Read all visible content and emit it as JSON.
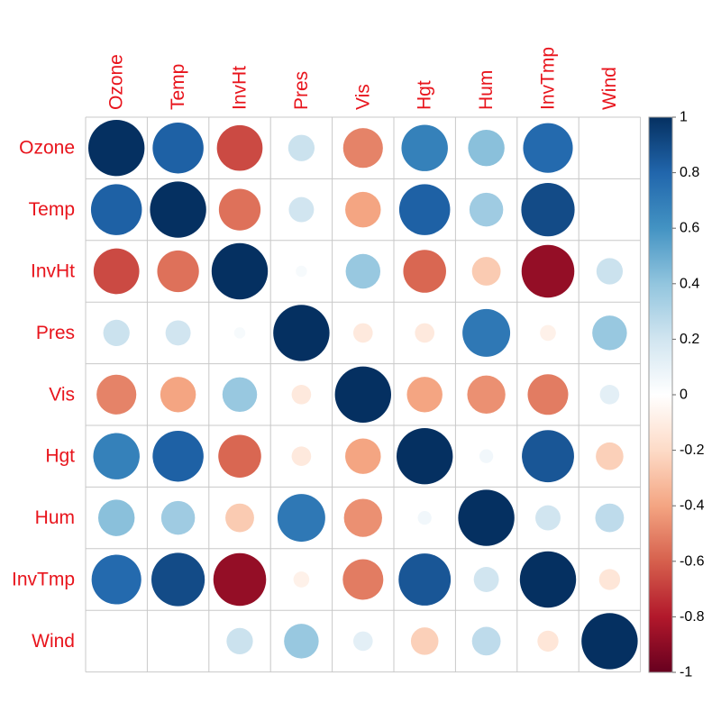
{
  "chart_data": {
    "type": "heatmap",
    "style": "circle",
    "label_color": "#e8141c",
    "variables": [
      "Ozone",
      "Temp",
      "InvHt",
      "Pres",
      "Vis",
      "Hgt",
      "Hum",
      "InvTmp",
      "Wind"
    ],
    "matrix": [
      [
        1.0,
        0.82,
        -0.66,
        0.22,
        -0.5,
        0.68,
        0.42,
        0.78,
        0.0
      ],
      [
        0.82,
        1.0,
        -0.55,
        0.2,
        -0.4,
        0.82,
        0.36,
        0.9,
        0.0
      ],
      [
        -0.66,
        -0.55,
        1.0,
        0.04,
        0.38,
        -0.58,
        -0.26,
        -0.88,
        0.22
      ],
      [
        0.22,
        0.2,
        0.04,
        1.0,
        -0.12,
        -0.12,
        0.72,
        -0.08,
        0.38
      ],
      [
        -0.5,
        -0.4,
        0.38,
        -0.12,
        1.0,
        -0.4,
        -0.46,
        -0.52,
        0.12
      ],
      [
        0.68,
        0.82,
        -0.58,
        -0.12,
        -0.4,
        1.0,
        0.06,
        0.86,
        -0.24
      ],
      [
        0.42,
        0.36,
        -0.26,
        0.72,
        -0.46,
        0.06,
        1.0,
        0.2,
        0.26
      ],
      [
        0.78,
        0.9,
        -0.88,
        -0.08,
        -0.52,
        0.86,
        0.2,
        1.0,
        -0.14
      ],
      [
        0.0,
        0.0,
        0.22,
        0.38,
        0.12,
        -0.24,
        0.26,
        -0.14,
        1.0
      ]
    ],
    "color_scale": {
      "min": -1,
      "max": 1,
      "ticks": [
        1,
        0.8,
        0.6,
        0.4,
        0.2,
        0,
        -0.2,
        -0.4,
        -0.6,
        -0.8,
        -1
      ],
      "tick_labels": [
        "1",
        "0.8",
        "0.6",
        "0.4",
        "0.2",
        "0",
        "-0.2",
        "-0.4",
        "-0.6",
        "-0.8",
        "-1"
      ],
      "stops": [
        "#67001f",
        "#b2182b",
        "#d6604d",
        "#f4a582",
        "#fddbc7",
        "#ffffff",
        "#d1e5f0",
        "#92c5de",
        "#4393c3",
        "#2166ac",
        "#053061"
      ]
    }
  }
}
